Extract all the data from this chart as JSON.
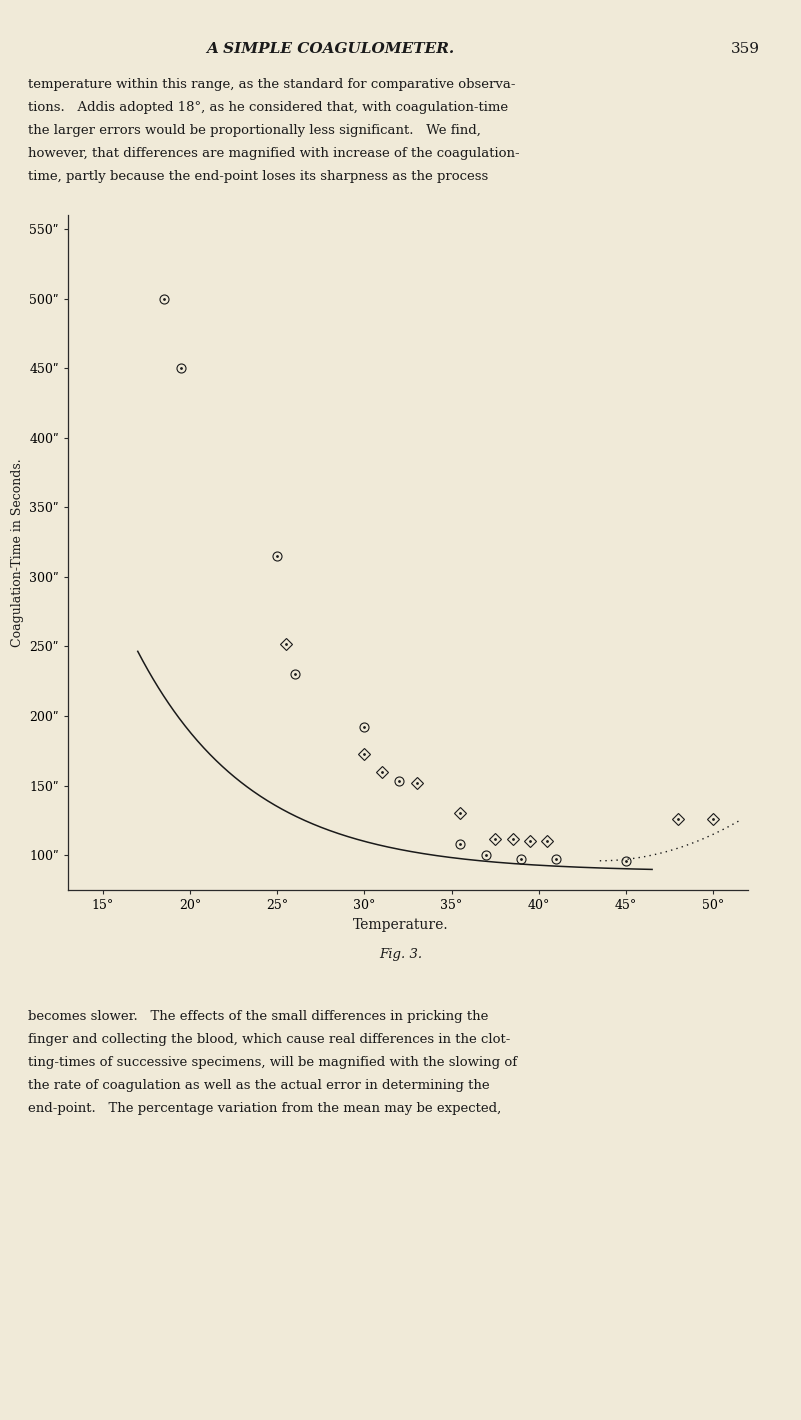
{
  "background_color": "#f0ead8",
  "ylabel": "Coagulation-Time in Seconds.",
  "xlabel": "Temperature.",
  "fig_label": "Fig. 3.",
  "xlim": [
    13,
    52
  ],
  "ylim": [
    75,
    560
  ],
  "xticks": [
    15,
    20,
    25,
    30,
    35,
    40,
    45,
    50
  ],
  "yticks": [
    100,
    150,
    200,
    250,
    300,
    350,
    400,
    450,
    500,
    550
  ],
  "circle_pts": [
    [
      18.5,
      500
    ],
    [
      19.5,
      450
    ],
    [
      25.0,
      315
    ],
    [
      26.0,
      230
    ],
    [
      30.0,
      192
    ],
    [
      32.0,
      153
    ],
    [
      35.5,
      108
    ],
    [
      37.0,
      100
    ],
    [
      39.0,
      97
    ],
    [
      41.0,
      97
    ],
    [
      45.0,
      96
    ]
  ],
  "diamond_pts": [
    [
      25.5,
      252
    ],
    [
      30.0,
      173
    ],
    [
      31.0,
      160
    ],
    [
      33.0,
      152
    ],
    [
      35.5,
      130
    ],
    [
      37.5,
      112
    ],
    [
      38.5,
      112
    ],
    [
      39.5,
      110
    ],
    [
      40.5,
      110
    ],
    [
      48.0,
      126
    ],
    [
      50.0,
      126
    ]
  ],
  "curve_a": 2100,
  "curve_b": 0.152,
  "curve_c": 88,
  "curve_xstart": 17.0,
  "curve_xend": 46.5,
  "dot_xstart": 43.5,
  "dot_xend": 51.5,
  "dot_y0": 96,
  "dot_coef": 0.45,
  "header": "A SIMPLE COAGULOMETER.",
  "page_num": "359",
  "para1_lines": [
    "temperature within this range, as the standard for comparative observa-",
    "tions.   Addis adopted 18°, as he considered that, with coagulation-time",
    "the larger errors would be proportionally less significant.   We find,",
    "however, that differences are magnified with increase of the coagulation-",
    "time, partly because the end-point loses its sharpness as the process"
  ],
  "para2_lines": [
    "becomes slower.   The effects of the small differences in pricking the",
    "finger and collecting the blood, which cause real differences in the clot-",
    "ting-times of successive specimens, will be magnified with the slowing of",
    "the rate of coagulation as well as the actual error in determining the",
    "end-point.   The percentage variation from the mean may be expected,"
  ]
}
